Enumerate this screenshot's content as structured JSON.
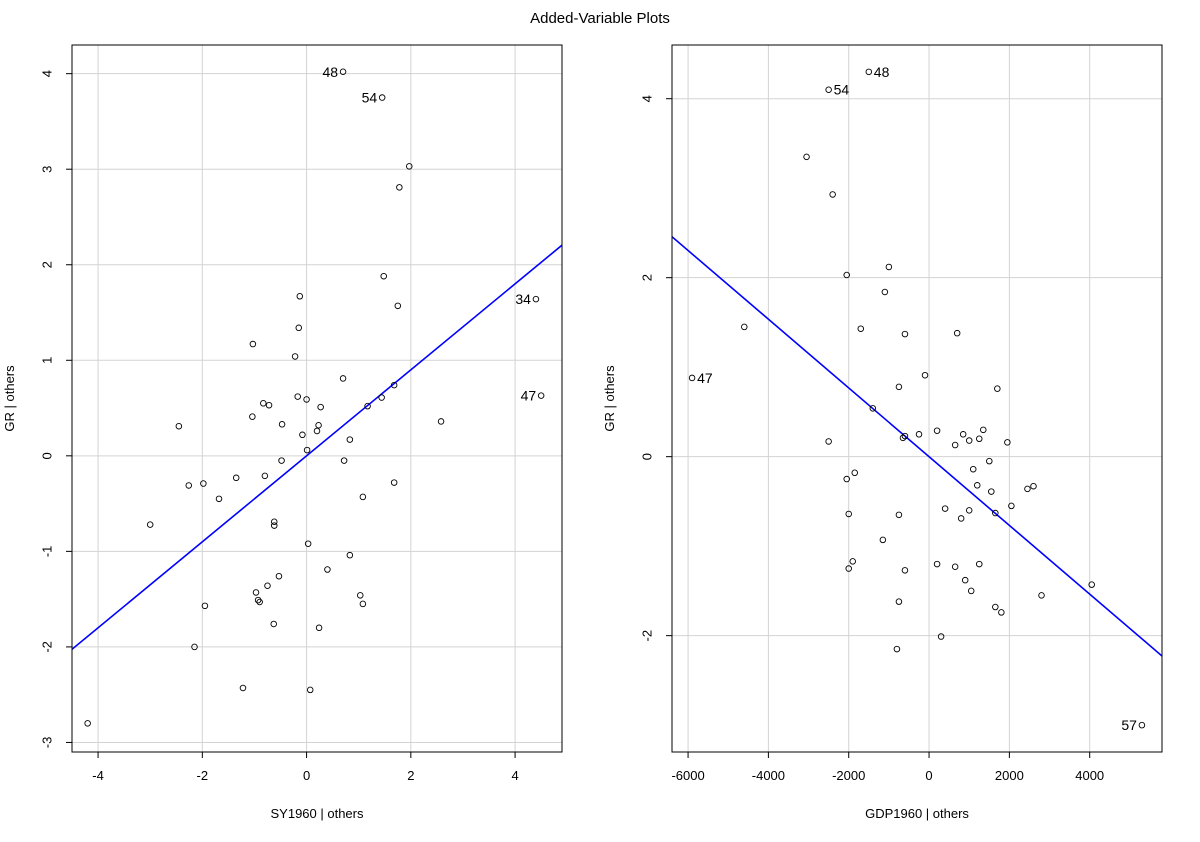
{
  "figure": {
    "title": "Added-Variable Plots"
  },
  "chart_data": [
    {
      "type": "scatter",
      "title": "",
      "xlabel": "SY1960 | others",
      "ylabel": "GR  | others",
      "xlim": [
        -4.5,
        4.9
      ],
      "ylim": [
        -3.1,
        4.3
      ],
      "xticks": [
        -4,
        -2,
        0,
        2,
        4
      ],
      "yticks": [
        -3,
        -2,
        -1,
        0,
        1,
        2,
        3,
        4
      ],
      "grid": true,
      "regression_line": {
        "slope": 0.45,
        "intercept": 0.0,
        "color": "#0000ff"
      },
      "points": [
        {
          "x": 0.7,
          "y": 4.02,
          "label": "48"
        },
        {
          "x": 1.45,
          "y": 3.75,
          "label": "54"
        },
        {
          "x": 4.4,
          "y": 1.64,
          "label": "34"
        },
        {
          "x": 4.5,
          "y": 0.63,
          "label": "47"
        },
        {
          "x": 1.97,
          "y": 3.03
        },
        {
          "x": 1.78,
          "y": 2.81
        },
        {
          "x": 1.48,
          "y": 1.88
        },
        {
          "x": 1.75,
          "y": 1.57
        },
        {
          "x": -0.13,
          "y": 1.67
        },
        {
          "x": -0.15,
          "y": 1.34
        },
        {
          "x": -1.03,
          "y": 1.17
        },
        {
          "x": -0.22,
          "y": 1.04
        },
        {
          "x": 0.7,
          "y": 0.81
        },
        {
          "x": 1.68,
          "y": 0.74
        },
        {
          "x": -0.17,
          "y": 0.62
        },
        {
          "x": 0.0,
          "y": 0.59
        },
        {
          "x": 1.44,
          "y": 0.61
        },
        {
          "x": 1.17,
          "y": 0.52
        },
        {
          "x": 0.27,
          "y": 0.51
        },
        {
          "x": -0.83,
          "y": 0.55
        },
        {
          "x": -0.72,
          "y": 0.53
        },
        {
          "x": -1.04,
          "y": 0.41
        },
        {
          "x": 2.58,
          "y": 0.36
        },
        {
          "x": -0.47,
          "y": 0.33
        },
        {
          "x": 0.23,
          "y": 0.32
        },
        {
          "x": -2.45,
          "y": 0.31
        },
        {
          "x": 0.2,
          "y": 0.26
        },
        {
          "x": -0.08,
          "y": 0.22
        },
        {
          "x": 0.83,
          "y": 0.17
        },
        {
          "x": 0.01,
          "y": 0.06
        },
        {
          "x": -0.48,
          "y": -0.05
        },
        {
          "x": 0.72,
          "y": -0.05
        },
        {
          "x": -1.35,
          "y": -0.23
        },
        {
          "x": -0.8,
          "y": -0.21
        },
        {
          "x": -1.98,
          "y": -0.29
        },
        {
          "x": -2.26,
          "y": -0.31
        },
        {
          "x": 1.68,
          "y": -0.28
        },
        {
          "x": -1.68,
          "y": -0.45
        },
        {
          "x": 1.08,
          "y": -0.43
        },
        {
          "x": -0.62,
          "y": -0.69
        },
        {
          "x": -0.62,
          "y": -0.73
        },
        {
          "x": -3.0,
          "y": -0.72
        },
        {
          "x": 0.03,
          "y": -0.92
        },
        {
          "x": 0.83,
          "y": -1.04
        },
        {
          "x": 0.4,
          "y": -1.19
        },
        {
          "x": -0.53,
          "y": -1.26
        },
        {
          "x": -0.75,
          "y": -1.36
        },
        {
          "x": -0.97,
          "y": -1.43
        },
        {
          "x": -0.93,
          "y": -1.51
        },
        {
          "x": -0.9,
          "y": -1.53
        },
        {
          "x": 1.03,
          "y": -1.46
        },
        {
          "x": 1.08,
          "y": -1.55
        },
        {
          "x": -1.95,
          "y": -1.57
        },
        {
          "x": -0.63,
          "y": -1.76
        },
        {
          "x": 0.24,
          "y": -1.8
        },
        {
          "x": -2.15,
          "y": -2.0
        },
        {
          "x": -1.22,
          "y": -2.43
        },
        {
          "x": 0.07,
          "y": -2.45
        },
        {
          "x": -4.2,
          "y": -2.8
        }
      ]
    },
    {
      "type": "scatter",
      "title": "",
      "xlabel": "GDP1960 | others",
      "ylabel": "GR  | others",
      "xlim": [
        -6400,
        5800
      ],
      "ylim": [
        -3.3,
        4.6
      ],
      "xticks": [
        -6000,
        -4000,
        -2000,
        0,
        2000,
        4000
      ],
      "yticks": [
        -2,
        0,
        2,
        4
      ],
      "grid": true,
      "regression_line": {
        "slope": -0.000384,
        "intercept": 0.0,
        "color": "#0000ff"
      },
      "points": [
        {
          "x": -1500,
          "y": 4.3,
          "label": "48"
        },
        {
          "x": -2500,
          "y": 4.1,
          "label": "54"
        },
        {
          "x": -5900,
          "y": 0.88,
          "label": "47"
        },
        {
          "x": 5300,
          "y": -3.0,
          "label": "57"
        },
        {
          "x": -3050,
          "y": 3.35
        },
        {
          "x": -2400,
          "y": 2.93
        },
        {
          "x": -1000,
          "y": 2.12
        },
        {
          "x": -2050,
          "y": 2.03
        },
        {
          "x": -1100,
          "y": 1.84
        },
        {
          "x": -4600,
          "y": 1.45
        },
        {
          "x": -1700,
          "y": 1.43
        },
        {
          "x": -600,
          "y": 1.37
        },
        {
          "x": 700,
          "y": 1.38
        },
        {
          "x": -100,
          "y": 0.91
        },
        {
          "x": -750,
          "y": 0.78
        },
        {
          "x": 1700,
          "y": 0.76
        },
        {
          "x": -1400,
          "y": 0.54
        },
        {
          "x": 200,
          "y": 0.29
        },
        {
          "x": 1350,
          "y": 0.3
        },
        {
          "x": -250,
          "y": 0.25
        },
        {
          "x": 850,
          "y": 0.25
        },
        {
          "x": -600,
          "y": 0.23
        },
        {
          "x": -650,
          "y": 0.21
        },
        {
          "x": 1000,
          "y": 0.18
        },
        {
          "x": 1250,
          "y": 0.2
        },
        {
          "x": -2500,
          "y": 0.17
        },
        {
          "x": 1950,
          "y": 0.16
        },
        {
          "x": 650,
          "y": 0.13
        },
        {
          "x": 1500,
          "y": -0.05
        },
        {
          "x": 1100,
          "y": -0.14
        },
        {
          "x": -1850,
          "y": -0.18
        },
        {
          "x": -2050,
          "y": -0.25
        },
        {
          "x": 1200,
          "y": -0.32
        },
        {
          "x": 2600,
          "y": -0.33
        },
        {
          "x": 2450,
          "y": -0.36
        },
        {
          "x": 1550,
          "y": -0.39
        },
        {
          "x": 2050,
          "y": -0.55
        },
        {
          "x": 400,
          "y": -0.58
        },
        {
          "x": 1000,
          "y": -0.6
        },
        {
          "x": 1650,
          "y": -0.63
        },
        {
          "x": -750,
          "y": -0.65
        },
        {
          "x": -2000,
          "y": -0.64
        },
        {
          "x": 800,
          "y": -0.69
        },
        {
          "x": -1150,
          "y": -0.93
        },
        {
          "x": -1900,
          "y": -1.17
        },
        {
          "x": -2000,
          "y": -1.25
        },
        {
          "x": 200,
          "y": -1.2
        },
        {
          "x": 1250,
          "y": -1.2
        },
        {
          "x": 650,
          "y": -1.23
        },
        {
          "x": -600,
          "y": -1.27
        },
        {
          "x": 900,
          "y": -1.38
        },
        {
          "x": 4050,
          "y": -1.43
        },
        {
          "x": 1050,
          "y": -1.5
        },
        {
          "x": 2800,
          "y": -1.55
        },
        {
          "x": -750,
          "y": -1.62
        },
        {
          "x": 1650,
          "y": -1.68
        },
        {
          "x": 1800,
          "y": -1.74
        },
        {
          "x": 300,
          "y": -2.01
        },
        {
          "x": -800,
          "y": -2.15
        }
      ]
    }
  ]
}
